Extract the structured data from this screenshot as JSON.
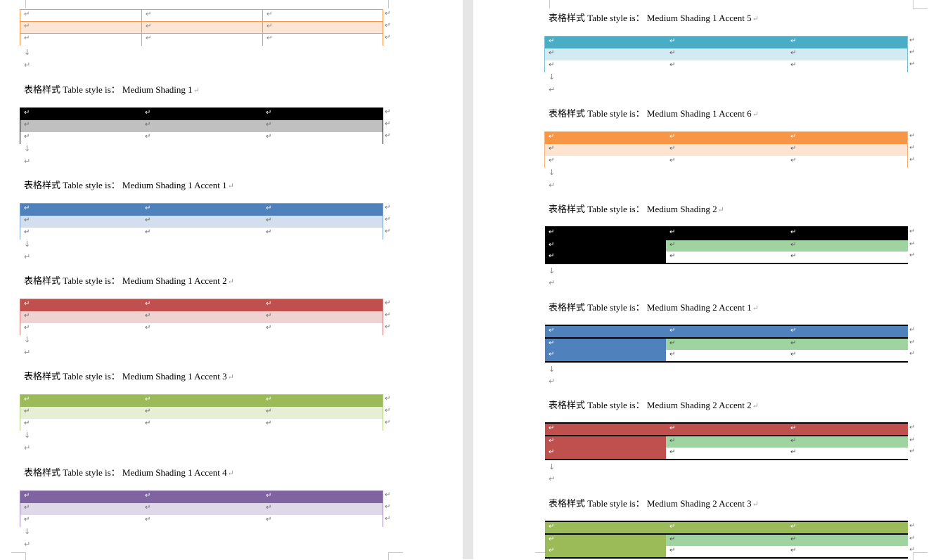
{
  "symbols": {
    "pilcrow": "↵",
    "arrow": "↓"
  },
  "top_table": {
    "header_fill": "#ffffff",
    "band_fill": "#fde5d5",
    "border": "#f79646",
    "grid": "#f79646"
  },
  "left": [
    {
      "style": "Medium Shading 1"
    },
    {
      "style": "Medium Shading 1 Accent 1"
    },
    {
      "style": "Medium Shading 1 Accent 2"
    },
    {
      "style": "Medium Shading 1 Accent 3"
    },
    {
      "style": "Medium Shading 1 Accent 4"
    }
  ],
  "right": [
    {
      "style": "Medium Shading 1 Accent 5"
    },
    {
      "style": "Medium Shading 1 Accent 6"
    },
    {
      "style": "Medium Shading 2"
    },
    {
      "style": "Medium Shading 2 Accent 1"
    },
    {
      "style": "Medium Shading 2 Accent 2"
    },
    {
      "style": "Medium Shading 2 Accent 3"
    }
  ],
  "caption_prefix": "表格样式 Table style is： ",
  "ms1_colors": {
    "Medium Shading 1": {
      "header": "#000000",
      "band": "#c0c0c0",
      "border": "#000000"
    },
    "Medium Shading 1 Accent 1": {
      "header": "#4f81bd",
      "band": "#d3dfee",
      "border": "#7ba0cd"
    },
    "Medium Shading 1 Accent 2": {
      "header": "#c0504d",
      "band": "#efd3d2",
      "border": "#cf7b79"
    },
    "Medium Shading 1 Accent 3": {
      "header": "#9bbb59",
      "band": "#e6eed5",
      "border": "#b3cc82"
    },
    "Medium Shading 1 Accent 4": {
      "header": "#8064a2",
      "band": "#dfd8e8",
      "border": "#9f8ab9"
    },
    "Medium Shading 1 Accent 5": {
      "header": "#4bacc6",
      "band": "#d2eaf1",
      "border": "#78c0d4"
    },
    "Medium Shading 1 Accent 6": {
      "header": "#f79646",
      "band": "#fde4d0",
      "border": "#f9b074"
    }
  },
  "ms2_colors": {
    "Medium Shading 2": {
      "header": "#000000",
      "firstcol": "#000000",
      "band": "#9fd4a0"
    },
    "Medium Shading 2 Accent 1": {
      "header": "#4f81bd",
      "firstcol": "#4f81bd",
      "band": "#9fd4a0"
    },
    "Medium Shading 2 Accent 2": {
      "header": "#c0504d",
      "firstcol": "#c0504d",
      "band": "#9fd4a0"
    },
    "Medium Shading 2 Accent 3": {
      "header": "#9bbb59",
      "firstcol": "#9bbb59",
      "band": "#9fd4a0"
    }
  }
}
